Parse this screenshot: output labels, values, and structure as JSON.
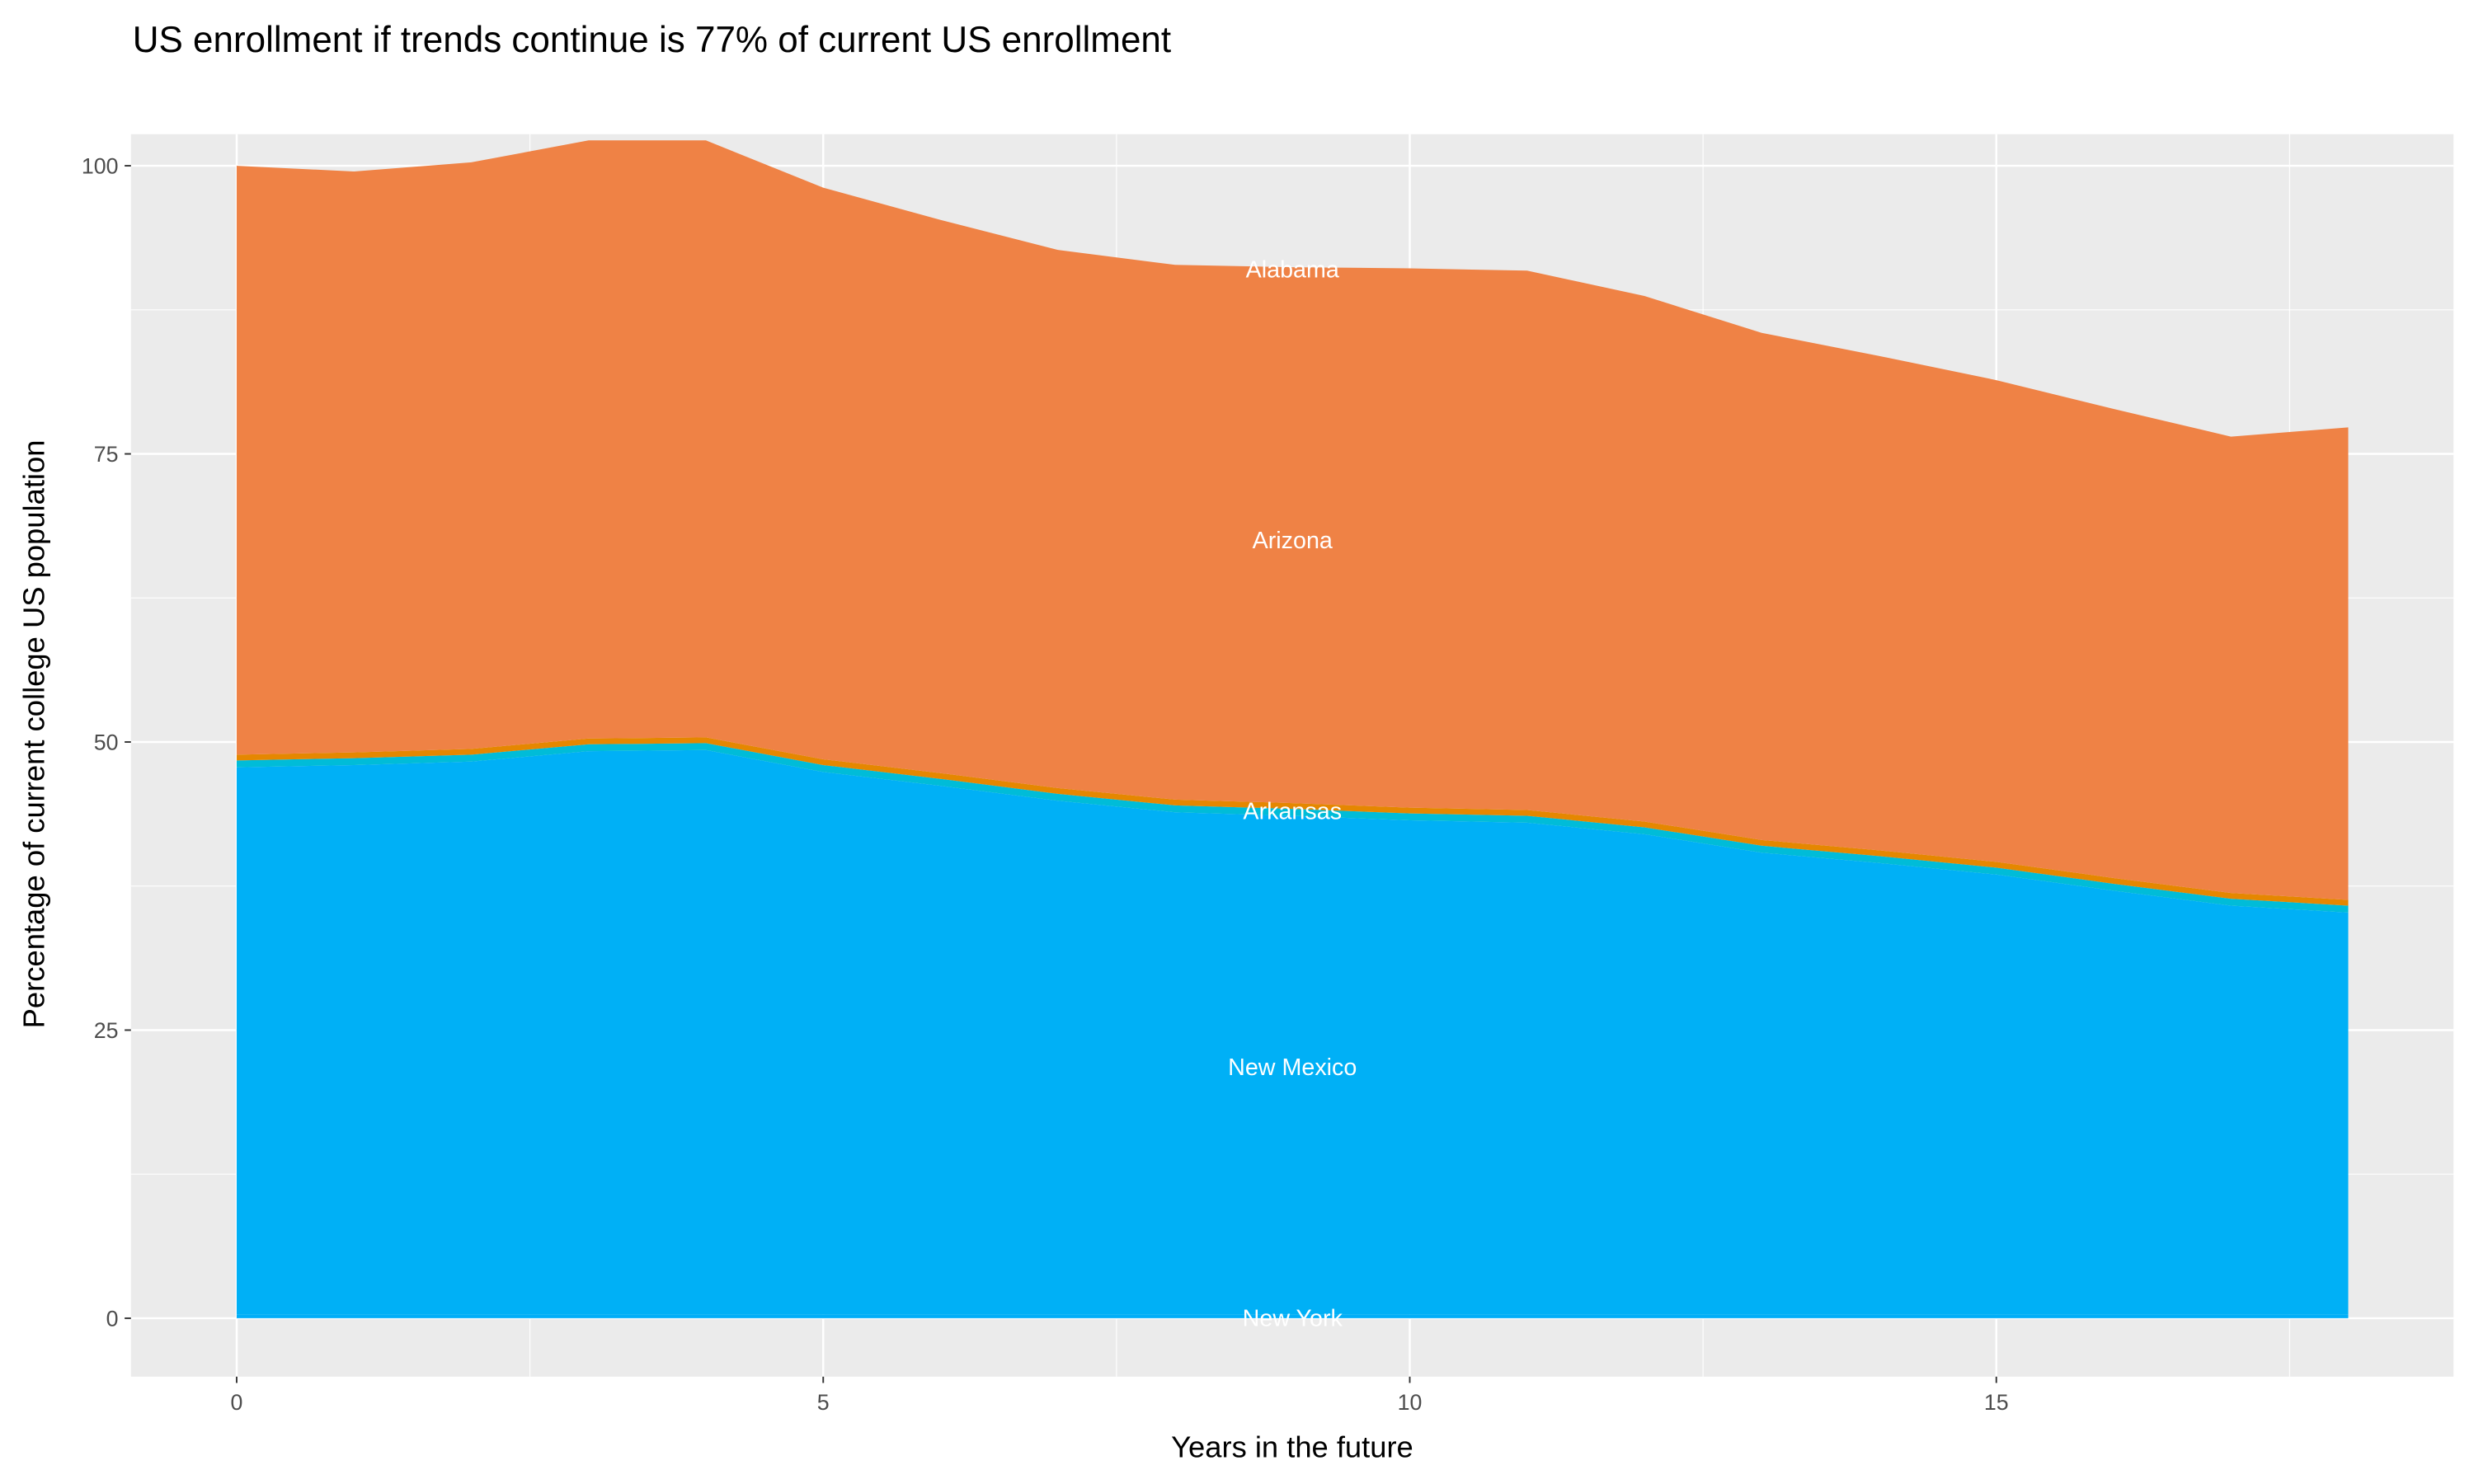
{
  "chart_data": {
    "type": "area",
    "stacked": true,
    "title": "US enrollment if trends continue is 77% of current US enrollment",
    "xlabel": "Years in the future",
    "ylabel": "Percentage of current college US population",
    "xlim": [
      -1.8,
      18.8
    ],
    "ylim": [
      -5,
      107
    ],
    "xticks": [
      0,
      5,
      10,
      15
    ],
    "xtick_labels": [
      "0",
      "5",
      "10",
      "15"
    ],
    "yticks": [
      0,
      25,
      50,
      75,
      100
    ],
    "ytick_labels": [
      "0",
      "25",
      "50",
      "75",
      "100"
    ],
    "grid": true,
    "background": "#ebebeb",
    "x": [
      0,
      1,
      2,
      3,
      4,
      5,
      6,
      7,
      8,
      9,
      10,
      11,
      12,
      13,
      14,
      15,
      16,
      17,
      18
    ],
    "series": [
      {
        "color": "#00aef8",
        "values": [
          0.3,
          0.3,
          0.3,
          0.3,
          0.3,
          0.3,
          0.3,
          0.3,
          0.3,
          0.3,
          0.3,
          0.3,
          0.3,
          0.3,
          0.3,
          0.3,
          0.3,
          0.3,
          0.3
        ]
      },
      {
        "color": "#00b0f6",
        "values": [
          47.5,
          47.7,
          48.0,
          48.9,
          49.0,
          47.1,
          45.9,
          44.6,
          43.6,
          43.3,
          42.9,
          42.7,
          41.7,
          40.1,
          39.2,
          38.2,
          36.8,
          35.5,
          34.9
        ]
      },
      {
        "color": "#00bcd8",
        "values": [
          0.6,
          0.6,
          0.6,
          0.6,
          0.6,
          0.6,
          0.6,
          0.6,
          0.6,
          0.6,
          0.6,
          0.6,
          0.6,
          0.6,
          0.6,
          0.6,
          0.6,
          0.6,
          0.6
        ]
      },
      {
        "color": "#e58700",
        "values": [
          0.5,
          0.5,
          0.5,
          0.5,
          0.5,
          0.5,
          0.5,
          0.5,
          0.5,
          0.5,
          0.5,
          0.5,
          0.5,
          0.5,
          0.5,
          0.5,
          0.5,
          0.5,
          0.5
        ]
      },
      {
        "color": "#ef8245",
        "values": [
          51.1,
          50.4,
          50.9,
          51.9,
          51.8,
          49.6,
          48.0,
          46.7,
          46.4,
          46.5,
          46.8,
          46.8,
          45.6,
          44.0,
          42.9,
          41.8,
          40.7,
          39.6,
          41.0
        ]
      }
    ],
    "annotations": [
      {
        "text": "Alabama",
        "x": 9,
        "y": 91
      },
      {
        "text": "Arizona",
        "x": 9,
        "y": 67.5
      },
      {
        "text": "Arkansas",
        "x": 9,
        "y": 44
      },
      {
        "text": "New Mexico",
        "x": 9,
        "y": 21.8
      },
      {
        "text": "New York",
        "x": 9,
        "y": 0
      }
    ]
  }
}
